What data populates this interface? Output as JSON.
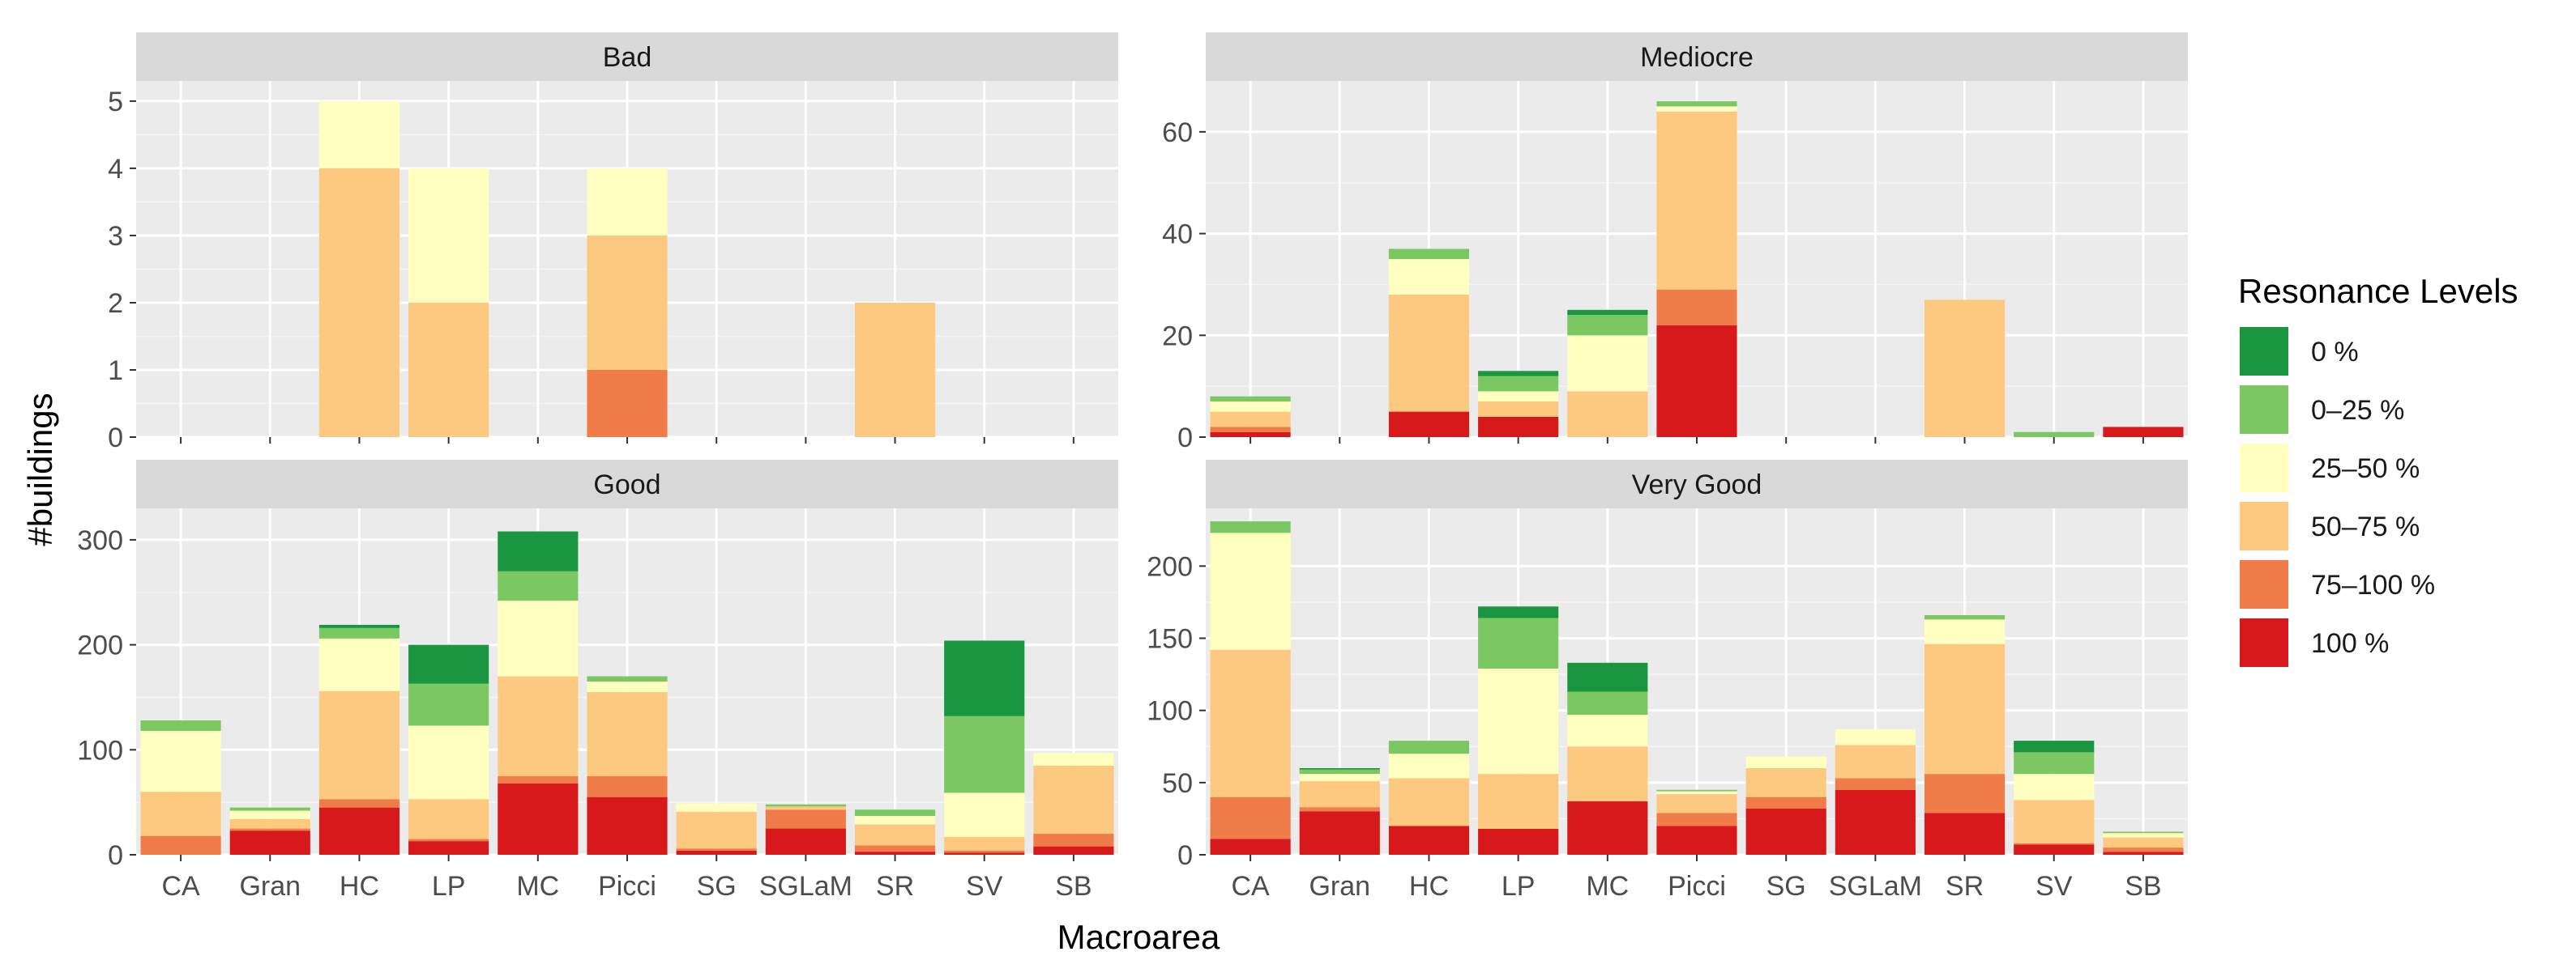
{
  "chart_data": {
    "type": "bar",
    "stacked": true,
    "facet_layout": "2x2",
    "xlabel": "Macroarea",
    "ylabel": "#buildings",
    "categories": [
      "CA",
      "Gran",
      "HC",
      "LP",
      "MC",
      "Picci",
      "SG",
      "SGLaM",
      "SR",
      "SV",
      "SB"
    ],
    "legend": {
      "title": "Resonance Levels",
      "position": "right",
      "items": [
        {
          "label": "0 %",
          "color": "#1a9641"
        },
        {
          "label": "0–25 %",
          "color": "#7bc862"
        },
        {
          "label": "25–50 %",
          "color": "#ffffbf"
        },
        {
          "label": "50–75 %",
          "color": "#fdc980"
        },
        {
          "label": "75–100 %",
          "color": "#f07c4a"
        },
        {
          "label": "100 %",
          "color": "#d7191c"
        }
      ]
    },
    "panels": [
      {
        "title": "Bad",
        "ylim": [
          0,
          5.3
        ],
        "yticks": [
          0,
          1,
          2,
          3,
          4,
          5
        ],
        "series": [
          {
            "name": "100 %",
            "values": [
              0,
              0,
              0,
              0,
              0,
              0,
              0,
              0,
              0,
              0,
              0
            ]
          },
          {
            "name": "75–100 %",
            "values": [
              0,
              0,
              0,
              0,
              0,
              1,
              0,
              0,
              0,
              0,
              0
            ]
          },
          {
            "name": "50–75 %",
            "values": [
              0,
              0,
              4,
              2,
              0,
              2,
              0,
              0,
              2,
              0,
              0
            ]
          },
          {
            "name": "25–50 %",
            "values": [
              0,
              0,
              1,
              2,
              0,
              1,
              0,
              0,
              0,
              0,
              0
            ]
          },
          {
            "name": "0–25 %",
            "values": [
              0,
              0,
              0,
              0,
              0,
              0,
              0,
              0,
              0,
              0,
              0
            ]
          },
          {
            "name": "0 %",
            "values": [
              0,
              0,
              0,
              0,
              0,
              0,
              0,
              0,
              0,
              0,
              0
            ]
          }
        ]
      },
      {
        "title": "Mediocre",
        "ylim": [
          0,
          70
        ],
        "yticks": [
          0,
          20,
          40,
          60
        ],
        "series": [
          {
            "name": "100 %",
            "values": [
              1,
              0,
              5,
              4,
              0,
              22,
              0,
              0,
              0,
              0,
              2
            ]
          },
          {
            "name": "75–100 %",
            "values": [
              1,
              0,
              0,
              0,
              0,
              7,
              0,
              0,
              0,
              0,
              0
            ]
          },
          {
            "name": "50–75 %",
            "values": [
              3,
              0,
              23,
              3,
              9,
              35,
              0,
              0,
              27,
              0,
              0
            ]
          },
          {
            "name": "25–50 %",
            "values": [
              2,
              0,
              7,
              2,
              11,
              1,
              0,
              0,
              0,
              0,
              0
            ]
          },
          {
            "name": "0–25 %",
            "values": [
              1,
              0,
              2,
              3,
              4,
              1,
              0,
              0,
              0,
              1,
              0
            ]
          },
          {
            "name": "0 %",
            "values": [
              0,
              0,
              0,
              1,
              1,
              0,
              0,
              0,
              0,
              0,
              0
            ]
          }
        ]
      },
      {
        "title": "Good",
        "ylim": [
          0,
          330
        ],
        "yticks": [
          0,
          100,
          200,
          300
        ],
        "series": [
          {
            "name": "100 %",
            "values": [
              0,
              23,
              45,
              13,
              68,
              55,
              4,
              25,
              3,
              2,
              8
            ]
          },
          {
            "name": "75–100 %",
            "values": [
              18,
              2,
              8,
              2,
              7,
              20,
              2,
              18,
              6,
              2,
              12
            ]
          },
          {
            "name": "50–75 %",
            "values": [
              42,
              9,
              103,
              38,
              95,
              80,
              35,
              3,
              20,
              13,
              65
            ]
          },
          {
            "name": "25–50 %",
            "values": [
              58,
              8,
              50,
              70,
              72,
              10,
              8,
              0,
              8,
              42,
              12
            ]
          },
          {
            "name": "0–25 %",
            "values": [
              10,
              3,
              10,
              40,
              28,
              5,
              0,
              2,
              6,
              73,
              0
            ]
          },
          {
            "name": "0 %",
            "values": [
              0,
              0,
              3,
              37,
              38,
              0,
              0,
              0,
              0,
              72,
              0
            ]
          }
        ]
      },
      {
        "title": "Very Good",
        "ylim": [
          0,
          240
        ],
        "yticks": [
          0,
          50,
          100,
          150,
          200
        ],
        "series": [
          {
            "name": "100 %",
            "values": [
              11,
              30,
              20,
              18,
              37,
              20,
              32,
              45,
              29,
              7,
              2
            ]
          },
          {
            "name": "75–100 %",
            "values": [
              29,
              3,
              0,
              0,
              0,
              9,
              8,
              8,
              27,
              1,
              3
            ]
          },
          {
            "name": "50–75 %",
            "values": [
              102,
              18,
              33,
              38,
              38,
              13,
              20,
              23,
              90,
              30,
              7
            ]
          },
          {
            "name": "25–50 %",
            "values": [
              81,
              5,
              17,
              73,
              22,
              2,
              8,
              11,
              17,
              18,
              3
            ]
          },
          {
            "name": "0–25 %",
            "values": [
              8,
              3,
              9,
              35,
              16,
              1,
              0,
              0,
              3,
              15,
              1
            ]
          },
          {
            "name": "0 %",
            "values": [
              0,
              1,
              0,
              8,
              20,
              0,
              0,
              0,
              0,
              8,
              0
            ]
          }
        ]
      }
    ]
  }
}
